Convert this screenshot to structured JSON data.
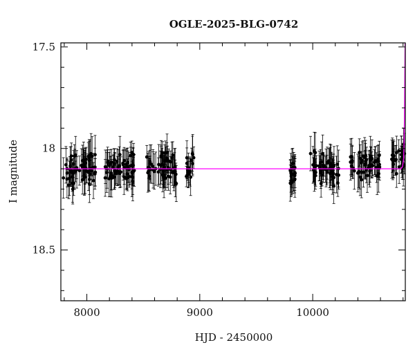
{
  "chart_data": {
    "type": "scatter",
    "title": "OGLE-2025-BLG-0742",
    "xlabel": "HJD - 2450000",
    "ylabel": "I magnitude",
    "xlim": [
      7770,
      10820
    ],
    "ylim": [
      18.75,
      17.48
    ],
    "y_inverted": true,
    "x_ticks": [
      8000,
      9000,
      10000
    ],
    "y_ticks": [
      17.5,
      18,
      18.5
    ],
    "grid": false,
    "marker_color": "#000000",
    "model_color": "#ff00ff",
    "seasons": [
      {
        "x_start": 7790,
        "x_end": 8080,
        "mean_mag": 18.1,
        "scatter": 0.08,
        "n": 60
      },
      {
        "x_start": 8160,
        "x_end": 8430,
        "mean_mag": 18.1,
        "scatter": 0.075,
        "n": 60
      },
      {
        "x_start": 8530,
        "x_end": 8800,
        "mean_mag": 18.1,
        "scatter": 0.07,
        "n": 60
      },
      {
        "x_start": 8880,
        "x_end": 8950,
        "mean_mag": 18.08,
        "scatter": 0.07,
        "n": 15
      },
      {
        "x_start": 9800,
        "x_end": 9850,
        "mean_mag": 18.13,
        "scatter": 0.07,
        "n": 20
      },
      {
        "x_start": 9980,
        "x_end": 10230,
        "mean_mag": 18.1,
        "scatter": 0.07,
        "n": 50
      },
      {
        "x_start": 10330,
        "x_end": 10600,
        "mean_mag": 18.08,
        "scatter": 0.07,
        "n": 50
      },
      {
        "x_start": 10700,
        "x_end": 10815,
        "mean_mag": 18.06,
        "scatter": 0.07,
        "n": 25
      }
    ],
    "baseline_mag": 18.1,
    "model": {
      "baseline": 18.1,
      "rise_start_x": 10780,
      "points": [
        [
          10780,
          18.1
        ],
        [
          10795,
          18.09
        ],
        [
          10805,
          18.05
        ],
        [
          10810,
          17.95
        ],
        [
          10813,
          17.8
        ],
        [
          10816,
          17.6
        ],
        [
          10818,
          17.48
        ]
      ]
    }
  }
}
